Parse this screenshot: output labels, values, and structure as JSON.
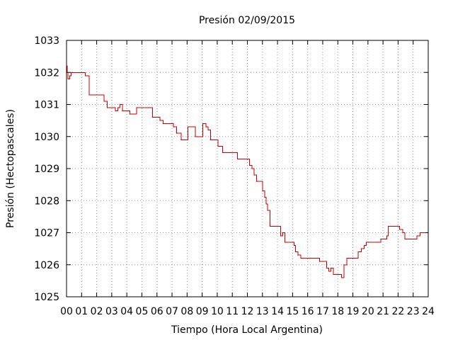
{
  "chart_data": {
    "type": "line",
    "title": "Presión 02/09/2015",
    "xlabel": "Tiempo (Hora Local Argentina)",
    "ylabel": "Presión (Hectopascales)",
    "xlim": [
      0,
      24
    ],
    "ylim": [
      1025,
      1033
    ],
    "x_ticks": [
      0,
      1,
      2,
      3,
      4,
      5,
      6,
      7,
      8,
      9,
      10,
      11,
      12,
      13,
      14,
      15,
      16,
      17,
      18,
      19,
      20,
      21,
      22,
      23,
      24
    ],
    "x_tick_labels": [
      "00",
      "01",
      "02",
      "03",
      "04",
      "05",
      "06",
      "07",
      "08",
      "09",
      "10",
      "11",
      "12",
      "13",
      "14",
      "15",
      "16",
      "17",
      "18",
      "19",
      "20",
      "21",
      "22",
      "23",
      "24"
    ],
    "y_ticks": [
      1025,
      1026,
      1027,
      1028,
      1029,
      1030,
      1031,
      1032,
      1033
    ],
    "y_tick_labels": [
      "1025",
      "1026",
      "1027",
      "1028",
      "1029",
      "1030",
      "1031",
      "1032",
      "1033"
    ],
    "grid": true,
    "line_style": "step",
    "series_color": "#cc0000",
    "series": [
      {
        "x": [
          0.0,
          0.05,
          0.1,
          0.2,
          0.3,
          0.4,
          1.25,
          1.5,
          2.5,
          2.7,
          2.85,
          3.25,
          3.4,
          3.55,
          3.7,
          4.2,
          4.65,
          5.5,
          5.7,
          6.1,
          6.2,
          6.4,
          6.8,
          7.1,
          7.3,
          7.6,
          8.05,
          8.55,
          9.05,
          9.25,
          9.4,
          9.55,
          10.05,
          10.35,
          11.35,
          12.15,
          12.3,
          12.45,
          12.6,
          13.0,
          13.15,
          13.25,
          13.35,
          13.5,
          13.65,
          14.2,
          14.35,
          14.5,
          15.1,
          15.2,
          15.35,
          15.55,
          15.7,
          16.2,
          16.8,
          17.25,
          17.4,
          17.55,
          17.7,
          17.85,
          18.25,
          18.4,
          18.6,
          18.75,
          19.35,
          19.55,
          19.75,
          19.9,
          20.05,
          20.55,
          20.85,
          21.25,
          21.35,
          21.95,
          22.1,
          22.3,
          22.45,
          22.95,
          23.25,
          23.45,
          23.8
        ],
        "values": [
          1032.2,
          1032.0,
          1031.8,
          1031.9,
          1032.0,
          1032.0,
          1031.9,
          1031.3,
          1031.1,
          1030.9,
          1030.9,
          1030.8,
          1030.9,
          1031.0,
          1030.8,
          1030.7,
          1030.9,
          1030.9,
          1030.6,
          1030.6,
          1030.5,
          1030.4,
          1030.4,
          1030.3,
          1030.1,
          1029.9,
          1030.3,
          1030.0,
          1030.4,
          1030.3,
          1030.2,
          1029.9,
          1029.7,
          1029.5,
          1029.3,
          1029.1,
          1029.0,
          1028.8,
          1028.6,
          1028.3,
          1028.1,
          1027.9,
          1027.7,
          1027.2,
          1027.2,
          1026.9,
          1027.0,
          1026.7,
          1026.6,
          1026.4,
          1026.3,
          1026.2,
          1026.2,
          1026.2,
          1026.1,
          1025.9,
          1025.8,
          1025.9,
          1025.7,
          1025.7,
          1025.6,
          1026.0,
          1026.2,
          1026.2,
          1026.4,
          1026.5,
          1026.6,
          1026.7,
          1026.7,
          1026.7,
          1026.8,
          1026.9,
          1027.2,
          1027.2,
          1027.1,
          1027.0,
          1026.8,
          1026.8,
          1026.9,
          1027.0,
          1027.0
        ]
      }
    ]
  }
}
